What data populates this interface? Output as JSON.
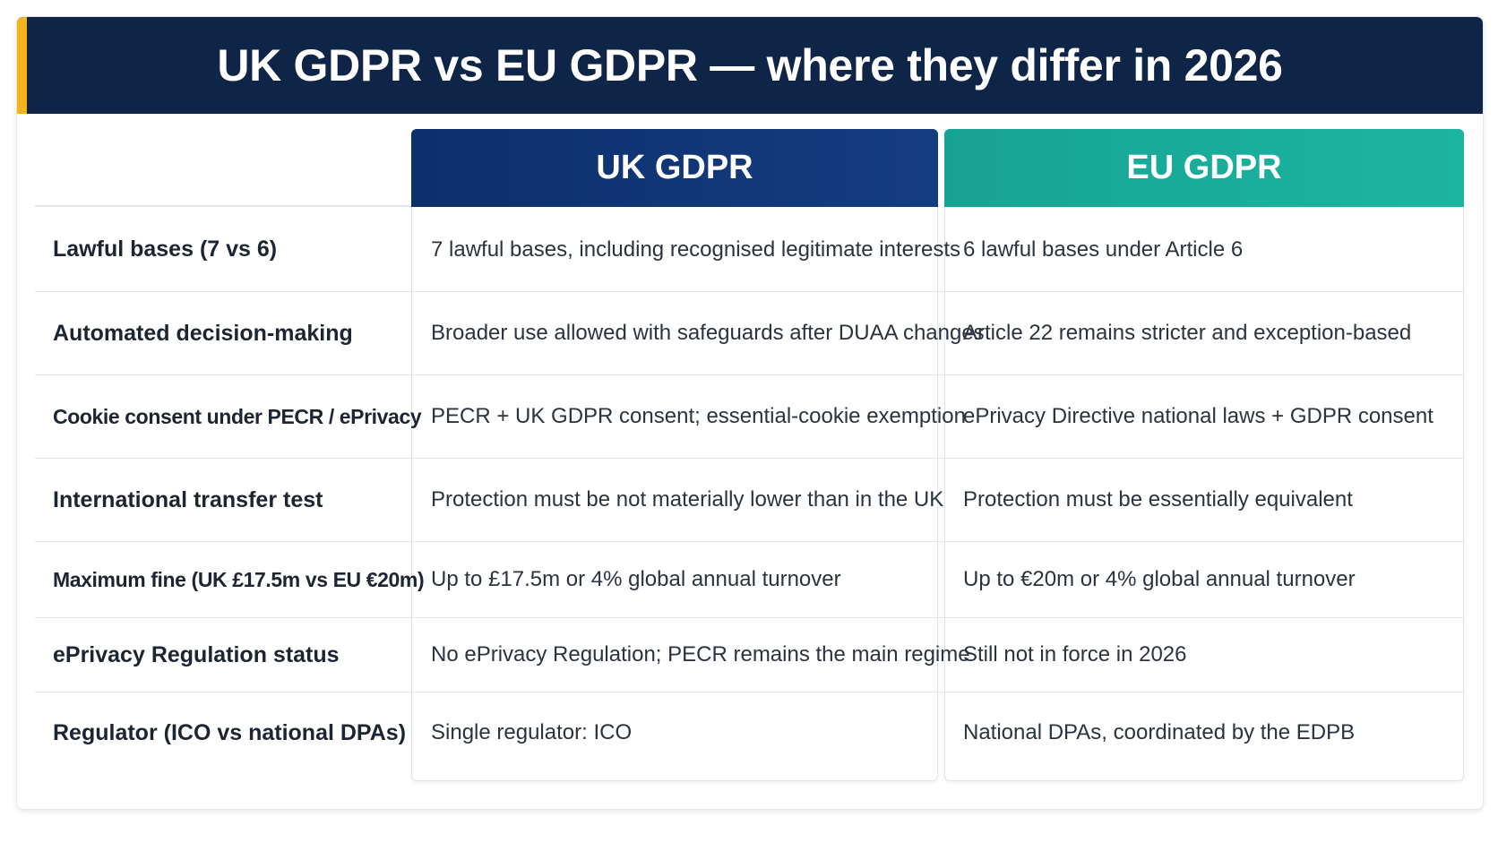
{
  "title": "UK GDPR vs EU GDPR — where they differ in 2026",
  "columns": {
    "uk": "UK GDPR",
    "eu": "EU GDPR"
  },
  "colors": {
    "title_bar": "#0f2547",
    "title_accent": "#f4b41a",
    "uk_header": "#0d2f6b",
    "eu_header": "#1cb5a1"
  },
  "rows": [
    {
      "label": "Lawful bases (7 vs 6)",
      "uk": "7 lawful bases, including recognised legitimate interests",
      "eu": "6 lawful bases under Article 6"
    },
    {
      "label": "Automated decision-making",
      "uk": "Broader use allowed with safeguards after DUAA changes",
      "eu": "Article 22 remains stricter and exception-based"
    },
    {
      "label": "Cookie consent under PECR / ePrivacy",
      "uk": "PECR + UK GDPR consent; essential-cookie exemption",
      "eu": "ePrivacy Directive national laws + GDPR consent"
    },
    {
      "label": "International transfer test",
      "uk": "Protection must be not materially lower than in the UK",
      "eu": "Protection must be essentially equivalent"
    },
    {
      "label": "Maximum fine (UK £17.5m vs EU €20m)",
      "uk": "Up to £17.5m or 4% global annual turnover",
      "eu": "Up to €20m or 4% global annual turnover"
    },
    {
      "label": "ePrivacy Regulation status",
      "uk": "No ePrivacy Regulation; PECR remains the main regime",
      "eu": "Still not in force in 2026"
    },
    {
      "label": "Regulator (ICO vs national DPAs)",
      "uk": "Single regulator: ICO",
      "eu": "National DPAs, coordinated by the EDPB"
    }
  ]
}
